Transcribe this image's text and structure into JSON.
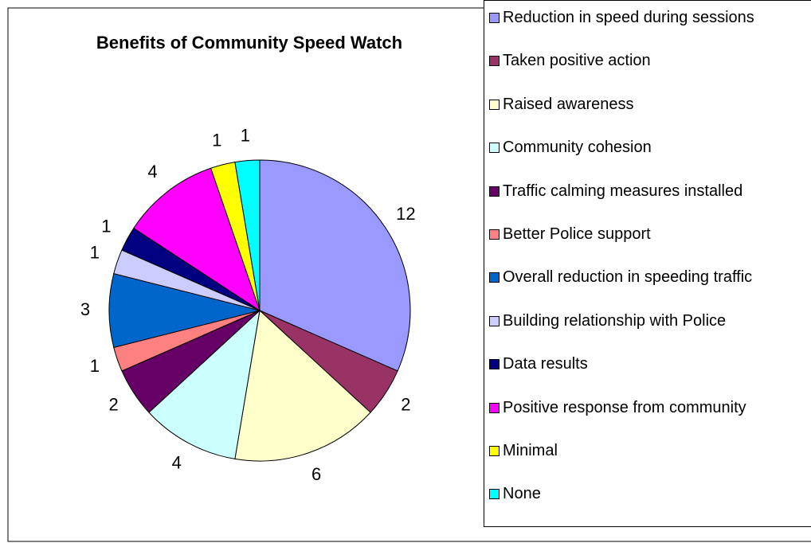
{
  "chart_data": {
    "type": "pie",
    "title": "Benefits of Community Speed Watch",
    "categories": [
      "Reduction in speed during sessions",
      "Taken positive action",
      "Raised awareness",
      "Community cohesion",
      "Traffic calming measures installed",
      "Better Police support",
      "Overall reduction in speeding traffic",
      "Building relationship with Police",
      "Data results",
      "Positive response from community",
      "Minimal",
      "None"
    ],
    "values": [
      12,
      2,
      6,
      4,
      2,
      1,
      3,
      1,
      1,
      4,
      1,
      1
    ],
    "colors": [
      "#9999ff",
      "#993366",
      "#ffffcc",
      "#ccffff",
      "#660066",
      "#ff8080",
      "#0066cc",
      "#ccccff",
      "#000080",
      "#ff00ff",
      "#ffff00",
      "#00ffff"
    ],
    "legend": "right"
  }
}
